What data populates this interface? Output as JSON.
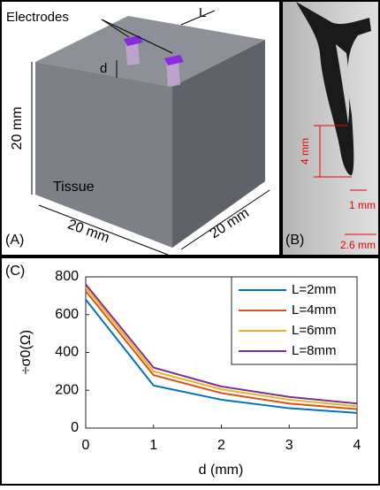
{
  "panel_a": {
    "label": "(A)",
    "electrodes": "Electrodes",
    "spacing": "L",
    "depth": "d",
    "height": "20 mm",
    "width": "20 mm",
    "depth_dim": "20 mm",
    "tissue": "Tissue"
  },
  "panel_b": {
    "label": "(B)",
    "length": "4 mm",
    "tip": "1 mm",
    "span": "2.6 mm"
  },
  "chart_data": {
    "type": "line",
    "panel_label": "(C)",
    "x_label": "d (mm)",
    "y_label": "÷σ0(Ω)",
    "x": [
      0,
      1,
      2,
      3,
      4
    ],
    "series": [
      {
        "name": "L=2mm",
        "color": "#0072bd",
        "values": [
          680,
          225,
          150,
          105,
          80
        ]
      },
      {
        "name": "L=4mm",
        "color": "#d95319",
        "values": [
          725,
          280,
          185,
          130,
          100
        ]
      },
      {
        "name": "L=6mm",
        "color": "#edb120",
        "values": [
          745,
          300,
          205,
          150,
          115
        ]
      },
      {
        "name": "L=8mm",
        "color": "#7e2f8e",
        "values": [
          760,
          320,
          220,
          165,
          130
        ]
      }
    ],
    "xlim": [
      0,
      4
    ],
    "xticks": [
      0,
      1,
      2,
      3,
      4
    ],
    "ylim": [
      0,
      800
    ],
    "yticks": [
      0,
      200,
      400,
      600,
      800
    ],
    "legend": "upper-right"
  }
}
